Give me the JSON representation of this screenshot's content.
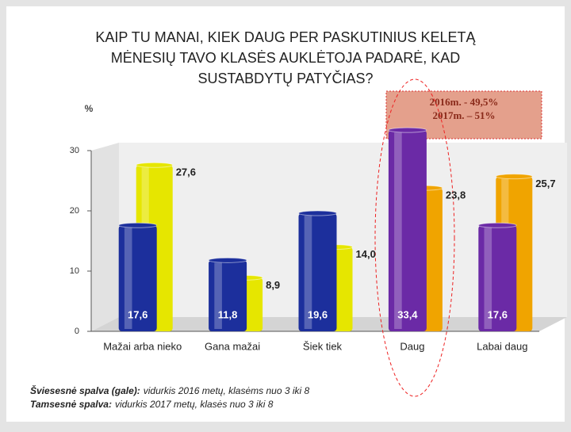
{
  "chart_data": {
    "type": "bar",
    "title": "KAIP TU MANAI, KIEK DAUG PER PASKUTINIUS KELETĄ MĖNESIŲ TAVO KLASĖS AUKLĖTOJA PADARĖ, KAD SUSTABDYTŲ PATYČIAS?",
    "y_label": "%",
    "categories": [
      "Mažai arba nieko",
      "Gana mažai",
      "Šiek tiek",
      "Daug",
      "Labai daug"
    ],
    "series": [
      {
        "colors": [
          "#e6e600",
          "#e6e600",
          "#e6e600",
          "#f0a400",
          "#f0a400"
        ],
        "values": [
          27.6,
          8.9,
          14.0,
          23.8,
          25.7
        ],
        "value_labels": [
          "27,6",
          "8,9",
          "14,0",
          "23,8",
          "25,7"
        ]
      },
      {
        "colors": [
          "#1c2f9c",
          "#1c2f9c",
          "#1c2f9c",
          "#6b2aa6",
          "#6b2aa6"
        ],
        "values": [
          17.6,
          11.8,
          19.6,
          33.4,
          17.6
        ],
        "value_labels": [
          "17,6",
          "11,8",
          "19,6",
          "33,4",
          "17,6"
        ]
      }
    ],
    "ylim": [
      0,
      30
    ],
    "yticks": [
      0,
      10,
      20,
      30
    ],
    "grid": false,
    "callout": [
      "2016m. - 49,5%",
      "2017m. – 51%"
    ],
    "notes": [
      {
        "lead": "Šviesesnė spalva (gale):",
        "text": "vidurkis 2016 metų, klasėms nuo 3 iki 8"
      },
      {
        "lead": "Tamsesnė spalva:",
        "text": "vidurkis 2017 metų, klasės nuo 3 iki 8"
      }
    ]
  }
}
